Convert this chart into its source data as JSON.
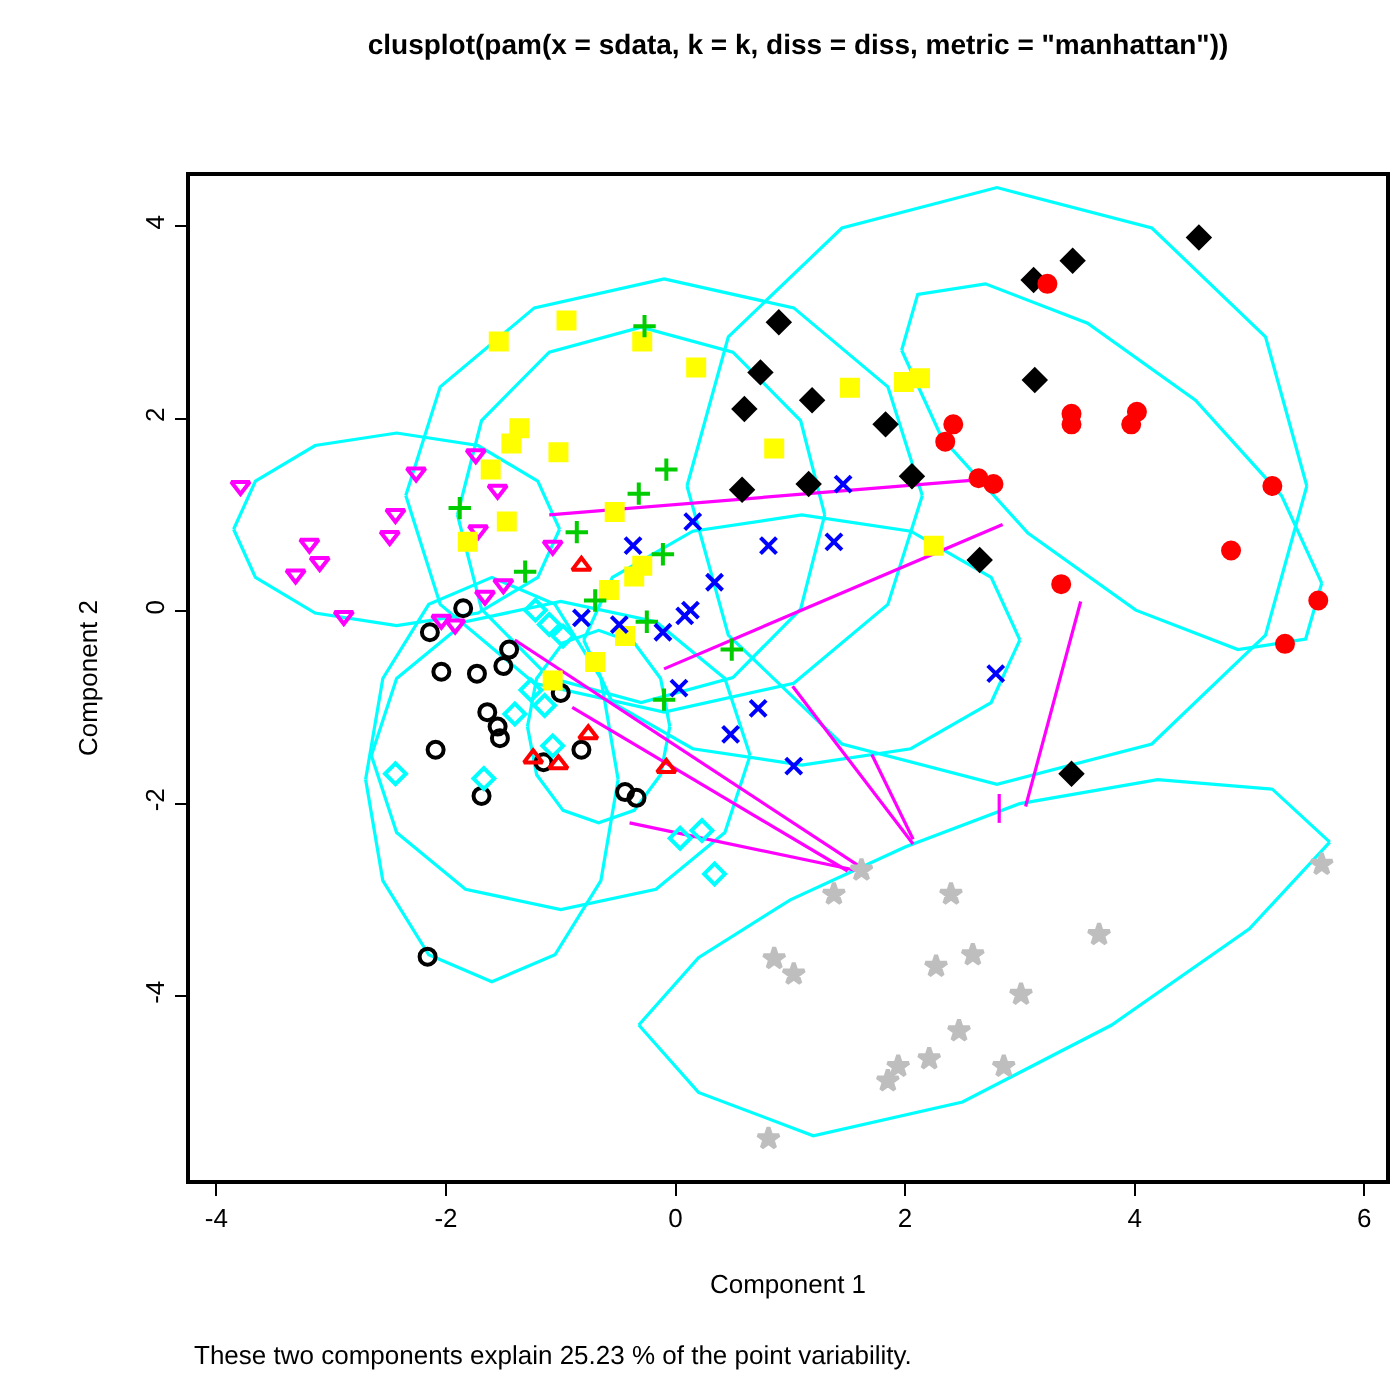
{
  "chart_data": {
    "type": "scatter",
    "title": "clusplot(pam(x = sdata, k = k, diss = diss, metric = \"manhattan\"))",
    "xlabel": "Component 1",
    "ylabel": "Component 2",
    "annotations": [
      "These two components explain 25.23 % of the point variability."
    ],
    "xlim": [
      -4.23,
      6.19
    ],
    "ylim": [
      -5.91,
      4.52
    ],
    "xticks": [
      -4,
      -2,
      0,
      2,
      4,
      6
    ],
    "yticks": [
      -4,
      -2,
      0,
      2,
      4
    ],
    "grid": false,
    "series": [
      {
        "type": "line",
        "color": "#00ffff",
        "marker": "none",
        "x": [
          -3.85,
          -3.66,
          -3.14,
          -2.43,
          -1.72,
          -1.2,
          -1.01,
          null,
          -3.85,
          -3.66,
          -3.14,
          -2.43,
          -1.72,
          -1.2,
          -1.01
        ],
        "values": [
          0.85,
          1.35,
          1.72,
          1.85,
          1.72,
          1.35,
          0.85,
          null,
          0.85,
          0.35,
          -0.02,
          -0.15,
          -0.02,
          0.35,
          0.85
        ]
      },
      {
        "type": "line",
        "color": "#00ffff",
        "marker": "none",
        "x": [
          -2.35,
          -2.05,
          -1.23,
          -0.1,
          1.03,
          1.85,
          2.15,
          null,
          -2.35,
          -2.05,
          -1.23,
          -0.1,
          1.03,
          1.85,
          2.15
        ],
        "values": [
          1.2,
          2.33,
          3.15,
          3.45,
          3.15,
          2.33,
          1.2,
          null,
          1.2,
          0.07,
          -0.75,
          -1.05,
          -0.75,
          0.07,
          1.2
        ]
      },
      {
        "type": "line",
        "color": "#00ffff",
        "marker": "none",
        "x": [
          -1.9,
          -1.69,
          -1.1,
          -0.3,
          0.5,
          1.09,
          1.3,
          null,
          -1.9,
          -1.69,
          -1.1,
          -0.3,
          0.5,
          1.09,
          1.3
        ],
        "values": [
          1.0,
          1.98,
          2.69,
          2.95,
          2.69,
          1.98,
          1.0,
          null,
          1.0,
          0.02,
          -0.69,
          -0.95,
          -0.69,
          0.02,
          1.0
        ]
      },
      {
        "type": "line",
        "color": "#00ffff",
        "marker": "none",
        "x": [
          0.1,
          0.46,
          1.45,
          2.8,
          4.15,
          5.14,
          5.5,
          null,
          0.1,
          0.46,
          1.45,
          2.8,
          4.15,
          5.14,
          5.5
        ],
        "values": [
          1.3,
          2.85,
          3.98,
          4.4,
          3.98,
          2.85,
          1.3,
          null,
          1.3,
          -0.25,
          -1.38,
          -1.8,
          -1.38,
          -0.25,
          1.3
        ]
      },
      {
        "type": "line",
        "color": "#00ffff",
        "marker": "none",
        "x": [
          1.97,
          2.11,
          2.7,
          3.59,
          4.53,
          5.28,
          5.63,
          null,
          1.97,
          2.32,
          3.07,
          4.01,
          4.9,
          5.49,
          5.63
        ],
        "values": [
          2.71,
          3.29,
          3.4,
          2.99,
          2.19,
          1.2,
          0.29,
          null,
          2.71,
          1.8,
          0.81,
          0.01,
          -0.4,
          -0.29,
          0.29
        ]
      },
      {
        "type": "line",
        "color": "#00ffff",
        "marker": "none",
        "x": [
          -0.32,
          0.2,
          1.0,
          2.0,
          3.0,
          4.2,
          5.2,
          5.7,
          null,
          -0.32,
          0.2,
          1.2,
          2.5,
          3.8,
          5.0,
          5.7
        ],
        "values": [
          -4.3,
          -3.6,
          -3.0,
          -2.45,
          -2.0,
          -1.75,
          -1.85,
          -2.4,
          null,
          -4.3,
          -5.0,
          -5.45,
          -5.1,
          -4.3,
          -3.3,
          -2.4
        ]
      },
      {
        "type": "line",
        "color": "#00ffff",
        "marker": "none",
        "x": [
          -2.7,
          -2.55,
          -2.15,
          -1.6,
          -1.05,
          -0.65,
          -0.5,
          null,
          -2.7,
          -2.55,
          -2.15,
          -1.6,
          -1.05,
          -0.65,
          -0.5
        ],
        "values": [
          -1.75,
          -0.7,
          0.07,
          0.35,
          0.07,
          -0.7,
          -1.75,
          null,
          -1.75,
          -2.8,
          -3.57,
          -3.85,
          -3.57,
          -2.8,
          -1.75
        ]
      },
      {
        "type": "line",
        "color": "#00ffff",
        "marker": "none",
        "x": [
          -2.65,
          -2.43,
          -1.83,
          -1.0,
          -0.17,
          0.43,
          0.65,
          null,
          -2.65,
          -2.43,
          -1.83,
          -1.0,
          -0.17,
          0.43,
          0.65
        ],
        "values": [
          -1.5,
          -0.7,
          -0.11,
          0.1,
          -0.11,
          -0.7,
          -1.5,
          null,
          -1.5,
          -2.3,
          -2.89,
          -3.1,
          -2.89,
          -2.3,
          -1.5
        ]
      },
      {
        "type": "line",
        "color": "#00ffff",
        "marker": "none",
        "x": [
          -1.29,
          -1.21,
          -0.98,
          -0.67,
          -0.36,
          -0.13,
          -0.05,
          null,
          -1.29,
          -1.21,
          -0.98,
          -0.67,
          -0.36,
          -0.13,
          -0.05
        ],
        "values": [
          -1.2,
          -0.7,
          -0.33,
          -0.2,
          -0.33,
          -0.7,
          -1.2,
          null,
          -1.2,
          -1.7,
          -2.07,
          -2.2,
          -2.07,
          -1.7,
          -1.2
        ]
      },
      {
        "type": "line",
        "color": "#00ffff",
        "marker": "none",
        "x": [
          -0.8,
          -0.55,
          0.15,
          1.1,
          2.05,
          2.75,
          3.0,
          null,
          -0.8,
          -0.55,
          0.15,
          1.1,
          2.05,
          2.75,
          3.0
        ],
        "values": [
          -0.3,
          0.35,
          0.83,
          1.0,
          0.83,
          0.35,
          -0.3,
          null,
          -0.3,
          -0.95,
          -1.43,
          -1.6,
          -1.43,
          -0.95,
          -0.3
        ]
      },
      {
        "type": "line",
        "color": "#ff00ff",
        "marker": "none",
        "x": [
          -1.1,
          2.6,
          null,
          -0.1,
          2.85,
          null,
          -1.4,
          1.6,
          null,
          -0.9,
          1.5,
          null,
          1.02,
          2.07,
          null,
          1.71,
          2.07,
          null,
          -0.4,
          1.6,
          null,
          3.53,
          3.05,
          null,
          2.82,
          2.82
        ],
        "values": [
          1.0,
          1.36,
          null,
          -0.6,
          0.9,
          null,
          -0.3,
          -2.65,
          null,
          -1.0,
          -2.7,
          null,
          -0.78,
          -2.42,
          null,
          -1.49,
          -2.37,
          null,
          -2.2,
          -2.7,
          null,
          0.1,
          -2.03,
          null,
          -1.9,
          -2.2
        ]
      },
      {
        "color": "#000000",
        "marker": "circle-open",
        "x": [
          -2.04,
          -1.73,
          -1.5,
          -1.64,
          -1.55,
          -1.53,
          -2.09,
          -1.69,
          -0.82,
          -1.15,
          -0.44,
          -0.34,
          -2.16,
          -1.85,
          -2.14,
          -1.45,
          -1.0
        ],
        "values": [
          -0.63,
          -0.65,
          -0.57,
          -1.05,
          -1.2,
          -1.32,
          -1.44,
          -1.92,
          -1.44,
          -1.57,
          -1.88,
          -1.94,
          -3.59,
          0.03,
          -0.22,
          -0.4,
          -0.85
        ]
      },
      {
        "color": "#ff00ff",
        "marker": "triangle-down-open",
        "x": [
          -3.79,
          -2.26,
          -1.74,
          -1.55,
          -2.44,
          -2.49,
          -1.72,
          -3.19,
          -3.1,
          -3.31,
          -2.89,
          -1.07,
          -1.5,
          -1.66,
          -2.04,
          -1.92
        ],
        "values": [
          1.3,
          1.44,
          1.63,
          1.26,
          1.01,
          0.78,
          0.84,
          0.7,
          0.51,
          0.38,
          -0.05,
          0.68,
          0.28,
          0.16,
          -0.09,
          -0.14
        ]
      },
      {
        "color": "#ffff00",
        "marker": "square",
        "x": [
          -1.54,
          -0.95,
          -0.29,
          0.18,
          -1.36,
          -1.43,
          -1.02,
          -1.61,
          -1.47,
          -1.81,
          0.86,
          -0.53,
          -0.29,
          -0.36,
          -0.58,
          -0.44,
          -0.7,
          1.52,
          1.99,
          2.13,
          2.25,
          -1.07
        ],
        "values": [
          2.8,
          3.02,
          2.8,
          2.53,
          1.9,
          1.74,
          1.65,
          1.47,
          0.93,
          0.72,
          1.69,
          1.03,
          0.47,
          0.36,
          0.22,
          -0.26,
          -0.53,
          2.32,
          2.38,
          2.42,
          0.68,
          -0.72
        ]
      },
      {
        "color": "#00cc00",
        "marker": "cross-thin-open",
        "x": [
          -0.27,
          -0.08,
          -0.32,
          -1.88,
          -0.86,
          -0.11,
          -1.31,
          -0.7,
          -0.25,
          0.49,
          -0.1
        ],
        "values": [
          2.96,
          1.47,
          1.22,
          1.07,
          0.82,
          0.59,
          0.41,
          0.11,
          -0.11,
          -0.4,
          -0.92
        ]
      },
      {
        "color": "#0000ff",
        "marker": "cross",
        "x": [
          0.15,
          -0.37,
          0.81,
          0.34,
          0.13,
          0.08,
          -0.82,
          -0.49,
          -0.11,
          1.46,
          1.38,
          2.79,
          1.03,
          0.72,
          0.48,
          0.03
        ],
        "values": [
          0.93,
          0.68,
          0.68,
          0.3,
          0.01,
          -0.05,
          -0.07,
          -0.14,
          -0.22,
          1.32,
          0.72,
          -0.65,
          -1.61,
          -1.01,
          -1.28,
          -0.8
        ]
      },
      {
        "color": "#000000",
        "marker": "diamond-cross",
        "x": [
          0.9,
          0.74,
          0.6,
          0.58,
          4.56,
          3.46,
          3.12,
          3.13,
          1.19,
          1.83,
          1.16,
          2.06,
          2.65,
          3.45
        ],
        "values": [
          3.0,
          2.48,
          2.1,
          1.26,
          3.88,
          3.64,
          3.44,
          2.4,
          2.19,
          1.94,
          1.32,
          1.4,
          0.53,
          -1.69
        ]
      },
      {
        "color": "#ff0000",
        "marker": "circle",
        "x": [
          3.24,
          2.42,
          2.35,
          3.45,
          3.45,
          4.02,
          3.97,
          2.64,
          2.77,
          5.2,
          4.84,
          3.36,
          5.6,
          5.31
        ],
        "values": [
          3.4,
          1.94,
          1.76,
          2.05,
          1.94,
          2.07,
          1.94,
          1.38,
          1.32,
          1.3,
          0.63,
          0.28,
          0.11,
          -0.34
        ]
      },
      {
        "color": "#ff0000",
        "marker": "triangle-up-open",
        "x": [
          -0.76,
          -1.24,
          -1.02,
          -0.08,
          -0.82
        ],
        "values": [
          -1.28,
          -1.53,
          -1.59,
          -1.63,
          0.47
        ]
      },
      {
        "color": "#00ffff",
        "marker": "diamond-open",
        "x": [
          -2.44,
          -1.67,
          -1.4,
          -1.26,
          -1.14,
          -1.07,
          0.04,
          0.23,
          0.34,
          -1.22,
          -1.1,
          -0.98
        ],
        "values": [
          -1.69,
          -1.74,
          -1.07,
          -0.82,
          -0.98,
          -1.4,
          -2.36,
          -2.28,
          -2.73,
          0.01,
          -0.14,
          -0.26
        ]
      },
      {
        "color": "#bebebe",
        "marker": "star",
        "x": [
          1.62,
          1.38,
          2.4,
          5.63,
          3.69,
          1.03,
          2.59,
          2.27,
          3.01,
          2.47,
          2.21,
          1.94,
          1.85,
          2.86,
          0.86,
          0.81
        ],
        "values": [
          -2.69,
          -2.94,
          -2.94,
          -2.63,
          -3.36,
          -3.77,
          -3.57,
          -3.69,
          -3.98,
          -4.36,
          -4.65,
          -4.73,
          -4.88,
          -4.73,
          -3.61,
          -5.48
        ]
      }
    ]
  }
}
